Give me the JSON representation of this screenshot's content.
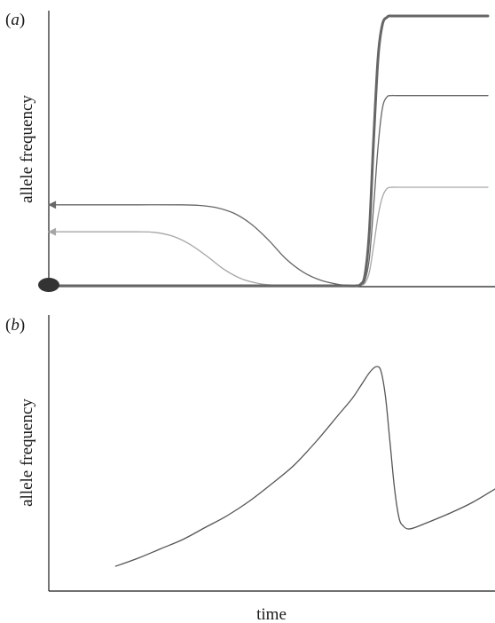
{
  "figure": {
    "xlabel": "time"
  },
  "chart_data": [
    {
      "panel": "(a)",
      "panel_letter": "a",
      "type": "line",
      "title": "",
      "xlabel": "",
      "ylabel": "allele frequency",
      "xlim": [
        0,
        100
      ],
      "ylim": [
        0,
        1
      ],
      "grid": false,
      "legend": "none",
      "marker": {
        "x": 0,
        "y": 0,
        "shape": "filled-ellipse",
        "color": "#333333"
      },
      "series": [
        {
          "color": "#666666",
          "width": 3,
          "x": [
            0,
            5,
            10,
            20,
            30,
            40,
            50,
            60,
            65,
            68,
            70,
            71,
            72,
            73,
            74,
            75,
            76,
            77,
            77.5,
            78,
            79,
            80,
            85,
            90,
            100
          ],
          "y": [
            0,
            0,
            0,
            0,
            0,
            0,
            0,
            0,
            0,
            0,
            0,
            0.005,
            0.04,
            0.2,
            0.55,
            0.85,
            0.97,
            0.995,
            1,
            1,
            1,
            1,
            1,
            1,
            1
          ]
        },
        {
          "color": "#666666",
          "width": 1.3,
          "arrow": true,
          "x": [
            0,
            10,
            20,
            30,
            34,
            38,
            42,
            46,
            50,
            54,
            58,
            62,
            66,
            69,
            71,
            72,
            73,
            74,
            75,
            76,
            77,
            78,
            79,
            80,
            85,
            90,
            100
          ],
          "y": [
            0.3,
            0.3,
            0.3,
            0.3,
            0.298,
            0.29,
            0.27,
            0.23,
            0.17,
            0.1,
            0.05,
            0.02,
            0.005,
            0.001,
            0.002,
            0.02,
            0.1,
            0.3,
            0.52,
            0.66,
            0.7,
            0.705,
            0.705,
            0.705,
            0.705,
            0.705,
            0.705
          ]
        },
        {
          "color": "#a6a6a6",
          "width": 1.3,
          "arrow": true,
          "x": [
            0,
            10,
            20,
            24,
            28,
            32,
            36,
            40,
            44,
            48,
            52,
            60,
            66,
            69,
            71,
            72,
            73,
            74,
            75,
            76,
            77,
            78,
            79,
            80,
            85,
            90,
            100
          ],
          "y": [
            0.2,
            0.2,
            0.2,
            0.198,
            0.185,
            0.155,
            0.11,
            0.06,
            0.025,
            0.008,
            0.002,
            0,
            0,
            0,
            0.002,
            0.01,
            0.05,
            0.15,
            0.26,
            0.33,
            0.36,
            0.365,
            0.365,
            0.365,
            0.365,
            0.365,
            0.365
          ]
        }
      ]
    },
    {
      "panel": "(b)",
      "panel_letter": "b",
      "type": "line",
      "title": "",
      "xlabel": "time",
      "ylabel": "allele frequency",
      "xlim": [
        0,
        100
      ],
      "ylim": [
        0,
        1
      ],
      "grid": false,
      "legend": "none",
      "series": [
        {
          "color": "#555555",
          "width": 1.3,
          "x": [
            15,
            20,
            25,
            30,
            35,
            40,
            45,
            50,
            55,
            60,
            65,
            68,
            70,
            72,
            73.5,
            74.5,
            75.5,
            76.5,
            77.5,
            78.5,
            79.5,
            80.5,
            82,
            85,
            90,
            95,
            100
          ],
          "y": [
            0.09,
            0.12,
            0.155,
            0.19,
            0.235,
            0.28,
            0.335,
            0.4,
            0.47,
            0.56,
            0.66,
            0.72,
            0.77,
            0.82,
            0.84,
            0.82,
            0.72,
            0.55,
            0.38,
            0.27,
            0.24,
            0.23,
            0.235,
            0.255,
            0.29,
            0.33,
            0.38
          ]
        }
      ]
    }
  ]
}
